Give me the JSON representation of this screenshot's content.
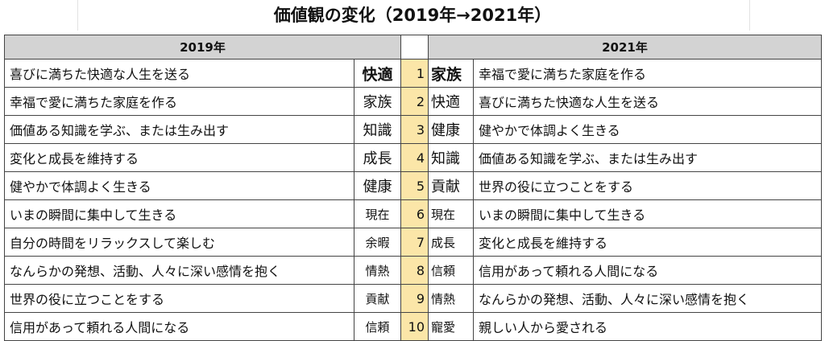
{
  "title": "価値観の変化（2019年→2021年）",
  "headers": {
    "left": "2019年",
    "right": "2021年"
  },
  "rows": [
    {
      "rank": "1",
      "left_desc": "喜びに満ちた快適な人生を送る",
      "left_kw": "快適",
      "right_kw": "家族",
      "right_desc": "幸福で愛に満ちた家庭を作る"
    },
    {
      "rank": "2",
      "left_desc": "幸福で愛に満ちた家庭を作る",
      "left_kw": "家族",
      "right_kw": "快適",
      "right_desc": "喜びに満ちた快適な人生を送る"
    },
    {
      "rank": "3",
      "left_desc": "価値ある知識を学ぶ、または生み出す",
      "left_kw": "知識",
      "right_kw": "健康",
      "right_desc": "健やかで体調よく生きる"
    },
    {
      "rank": "4",
      "left_desc": "変化と成長を維持する",
      "left_kw": "成長",
      "right_kw": "知識",
      "right_desc": "価値ある知識を学ぶ、または生み出す"
    },
    {
      "rank": "5",
      "left_desc": "健やかで体調よく生きる",
      "left_kw": "健康",
      "right_kw": "貢献",
      "right_desc": "世界の役に立つことをする"
    },
    {
      "rank": "6",
      "left_desc": "いまの瞬間に集中して生きる",
      "left_kw": "現在",
      "right_kw": "現在",
      "right_desc": "いまの瞬間に集中して生きる"
    },
    {
      "rank": "7",
      "left_desc": "自分の時間をリラックスして楽しむ",
      "left_kw": "余暇",
      "right_kw": "成長",
      "right_desc": "変化と成長を維持する"
    },
    {
      "rank": "8",
      "left_desc": "なんらかの発想、活動、人々に深い感情を抱く",
      "left_kw": "情熱",
      "right_kw": "信頼",
      "right_desc": "信用があって頼れる人間になる"
    },
    {
      "rank": "9",
      "left_desc": "世界の役に立つことをする",
      "left_kw": "貢献",
      "right_kw": "情熱",
      "right_desc": "なんらかの発想、活動、人々に深い感情を抱く"
    },
    {
      "rank": "10",
      "left_desc": "信用があって頼れる人間になる",
      "left_kw": "信頼",
      "right_kw": "寵愛",
      "right_desc": "親しい人から愛される"
    }
  ],
  "colors": {
    "header_bg": "#d3d3d3",
    "rank_bg": "#fbe6a8"
  }
}
